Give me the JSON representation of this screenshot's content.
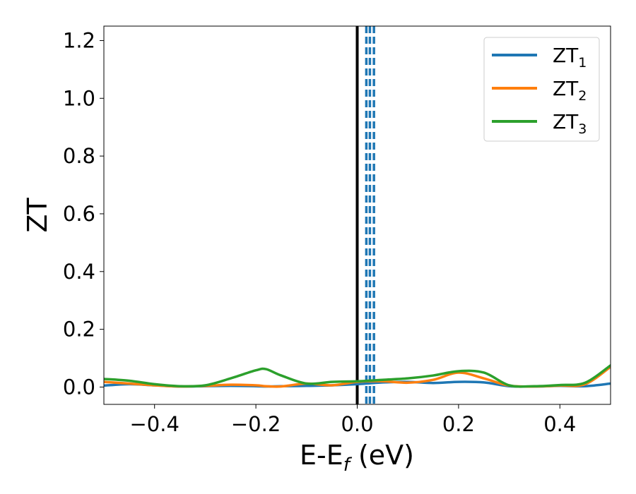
{
  "chart_data": {
    "type": "line",
    "title": "",
    "xlabel": "E-E",
    "xlabel_subscript": "f",
    "xlabel_unit": " (eV)",
    "ylabel": "ZT",
    "xlim": [
      -0.5,
      0.5
    ],
    "ylim": [
      -0.06,
      1.25
    ],
    "grid": false,
    "legend_position": "top-right",
    "xticks": [
      -0.4,
      -0.2,
      0.0,
      0.2,
      0.4
    ],
    "xtick_labels": [
      "−0.4",
      "−0.2",
      "0.0",
      "0.2",
      "0.4"
    ],
    "yticks": [
      0.0,
      0.2,
      0.4,
      0.6,
      0.8,
      1.0,
      1.2
    ],
    "ytick_labels": [
      "0.0",
      "0.2",
      "0.4",
      "0.6",
      "0.8",
      "1.0",
      "1.2"
    ],
    "x": [
      -0.5,
      -0.45,
      -0.4,
      -0.35,
      -0.3,
      -0.25,
      -0.2,
      -0.18,
      -0.15,
      -0.1,
      -0.05,
      0.0,
      0.05,
      0.1,
      0.15,
      0.2,
      0.25,
      0.3,
      0.35,
      0.4,
      0.45,
      0.5
    ],
    "series": [
      {
        "name": "ZT",
        "subscript": "1",
        "color": "#1f77b4",
        "values": [
          0.005,
          0.01,
          0.006,
          0.002,
          0.003,
          0.004,
          0.003,
          0.002,
          0.003,
          0.004,
          0.006,
          0.01,
          0.016,
          0.018,
          0.014,
          0.018,
          0.016,
          0.003,
          0.002,
          0.004,
          0.003,
          0.012
        ]
      },
      {
        "name": "ZT",
        "subscript": "2",
        "color": "#ff7f0e",
        "values": [
          0.018,
          0.012,
          0.006,
          0.002,
          0.004,
          0.008,
          0.006,
          0.003,
          0.002,
          0.012,
          0.006,
          0.018,
          0.02,
          0.015,
          0.025,
          0.05,
          0.03,
          0.005,
          0.002,
          0.005,
          0.01,
          0.07
        ]
      },
      {
        "name": "ZT",
        "subscript": "3",
        "color": "#2ca02c",
        "values": [
          0.028,
          0.022,
          0.01,
          0.003,
          0.006,
          0.03,
          0.058,
          0.062,
          0.04,
          0.012,
          0.018,
          0.02,
          0.025,
          0.03,
          0.04,
          0.055,
          0.05,
          0.006,
          0.003,
          0.007,
          0.015,
          0.075
        ]
      }
    ],
    "vlines": [
      {
        "x": 0.0,
        "style": "solid",
        "color": "#000000"
      },
      {
        "x": 0.018,
        "style": "dashed",
        "color": "#1f77b4"
      },
      {
        "x": 0.025,
        "style": "dashed",
        "color": "#1f77b4"
      },
      {
        "x": 0.033,
        "style": "dashed",
        "color": "#1f77b4"
      }
    ]
  }
}
